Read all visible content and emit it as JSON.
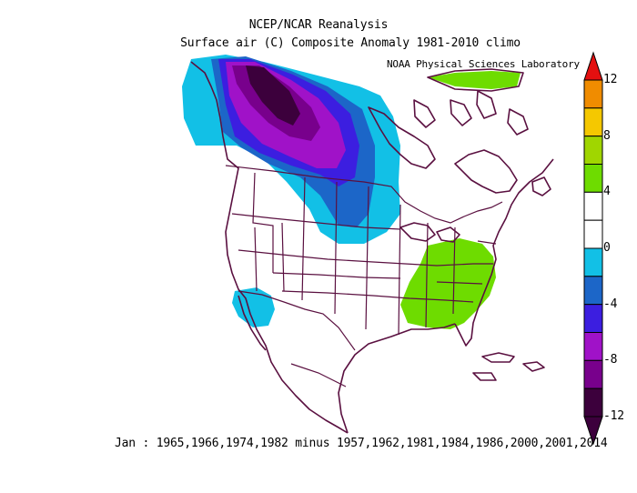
{
  "title_line1": "NCEP/NCAR Reanalysis",
  "title_line2": "Surface air (C) Composite Anomaly 1981-2010 climo",
  "credit": "NOAA Physical Sciences Laboratory",
  "caption": "Jan : 1965,1966,1974,1982 minus 1957,1962,1981,1984,1986,2000,2001,2014",
  "colorbar": {
    "tick_labels": [
      "12",
      "8",
      "4",
      "0",
      "-4",
      "-8",
      "-12"
    ],
    "levels": [
      {
        "range": "8 to 12",
        "color": "#e25011"
      },
      {
        "range": "8 to 10",
        "color": "#f08c00"
      },
      {
        "range": "6 to 8",
        "color": "#f5c800"
      },
      {
        "range": "4 to 6",
        "color": "#a0d600"
      },
      {
        "range": "2 to 4",
        "color": "#6edc00"
      },
      {
        "range": "0 to 2",
        "color": "#ffffff"
      },
      {
        "range": "-2 to 0",
        "color": "#ffffff"
      },
      {
        "range": "-4 to -2",
        "color": "#12c0e6"
      },
      {
        "range": "-6 to -4",
        "color": "#1c66c8"
      },
      {
        "range": "-8 to -6",
        "color": "#3c1ee0"
      },
      {
        "range": "-10 to -8",
        "color": "#a012c8"
      },
      {
        "range": "-12 to -10",
        "color": "#78008c"
      },
      {
        "range": "< -12",
        "color": "#3c003c"
      }
    ]
  },
  "anomaly_regions": [
    {
      "region": "Western Canada / Alaska panhandle",
      "anomaly_C": "-4 to -14"
    },
    {
      "region": "Northern Plains",
      "anomaly_C": "-2 to -4"
    },
    {
      "region": "Southern California / Baja",
      "anomaly_C": "-2 to -4"
    },
    {
      "region": "Southeastern US",
      "anomaly_C": "+2 to +4"
    },
    {
      "region": "Greenland",
      "anomaly_C": "+2 to +4"
    }
  ]
}
